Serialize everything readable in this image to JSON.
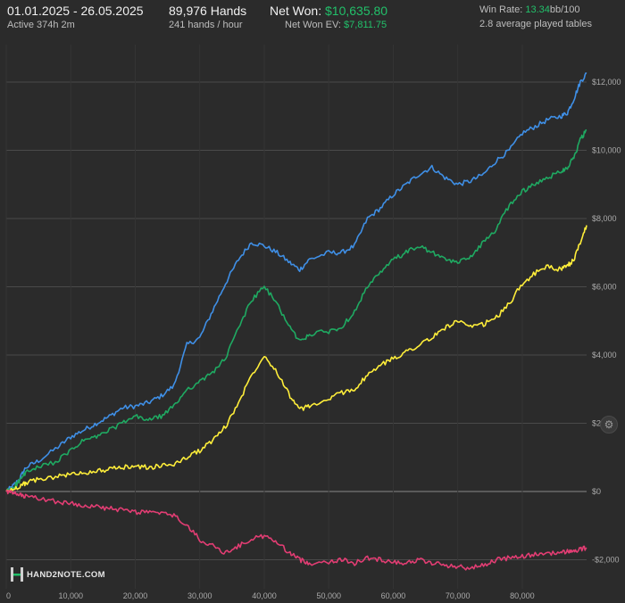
{
  "header": {
    "date_range": "01.01.2025 - 26.05.2025",
    "active": "Active 374h 2m",
    "hands": "89,976 Hands",
    "hands_per_hour": "241 hands / hour",
    "net_won_label": "Net Won:",
    "net_won_value": "$10,635.80",
    "net_won_ev_label": "Net Won  EV:",
    "net_won_ev_value": "$7,811.75",
    "win_rate_label": "Win Rate:",
    "win_rate_value": "13.34",
    "win_rate_unit": "bb/100",
    "tables": "2.8 average played tables"
  },
  "logo_text": "HAND2NOTE.COM",
  "settings_icon": "gear-icon",
  "chart_data": {
    "type": "line",
    "xlim": [
      0,
      89976
    ],
    "ylim": [
      -2500,
      12500
    ],
    "x_ticks": [
      0,
      10000,
      20000,
      30000,
      40000,
      50000,
      60000,
      70000,
      80000
    ],
    "x_tick_labels": [
      "0",
      "10,000",
      "20,000",
      "30,000",
      "40,000",
      "50,000",
      "60,000",
      "70,000",
      "80,000"
    ],
    "y_ticks": [
      -2000,
      0,
      2000,
      4000,
      6000,
      8000,
      10000,
      12000
    ],
    "y_tick_labels": [
      "-$2,000",
      "$0",
      "$2,000",
      "$4,000",
      "$6,000",
      "$8,000",
      "$10,000",
      "$12,000"
    ],
    "grid": true,
    "x": [
      0,
      1000,
      2000,
      3000,
      5000,
      8000,
      10000,
      12000,
      14000,
      16000,
      18000,
      20000,
      22000,
      24000,
      26000,
      28000,
      30000,
      32000,
      34000,
      36000,
      38000,
      40000,
      42000,
      44000,
      45500,
      47000,
      50000,
      52000,
      54000,
      56000,
      58000,
      60000,
      62000,
      64000,
      66000,
      68000,
      70000,
      72000,
      74000,
      76000,
      78000,
      80000,
      82000,
      84000,
      86000,
      87000,
      88000,
      89000,
      89976
    ],
    "series": [
      {
        "color": "#3f8fe6",
        "values": [
          0,
          150,
          350,
          700,
          900,
          1300,
          1600,
          1800,
          2000,
          2200,
          2450,
          2500,
          2600,
          2800,
          3100,
          4300,
          4500,
          5300,
          6100,
          6800,
          7300,
          7200,
          7000,
          6700,
          6500,
          6800,
          7000,
          7000,
          7200,
          8000,
          8300,
          8700,
          9000,
          9300,
          9500,
          9200,
          9000,
          9100,
          9300,
          9700,
          10000,
          10500,
          10700,
          10900,
          11000,
          11100,
          11500,
          12000,
          12250
        ]
      },
      {
        "color": "#1faa62",
        "values": [
          0,
          100,
          300,
          550,
          700,
          900,
          1200,
          1500,
          1600,
          1800,
          2000,
          2200,
          2100,
          2200,
          2500,
          3000,
          3200,
          3500,
          3900,
          4800,
          5600,
          6000,
          5500,
          4800,
          4400,
          4600,
          4700,
          4800,
          5300,
          6000,
          6400,
          6800,
          7000,
          7200,
          7000,
          6800,
          6700,
          6900,
          7300,
          7700,
          8400,
          8800,
          9000,
          9200,
          9400,
          9500,
          9800,
          10300,
          10600
        ]
      },
      {
        "color": "#ffee3a",
        "values": [
          0,
          50,
          150,
          250,
          350,
          450,
          500,
          550,
          600,
          650,
          700,
          750,
          700,
          750,
          800,
          1000,
          1200,
          1500,
          1900,
          2600,
          3400,
          4000,
          3500,
          2800,
          2400,
          2500,
          2700,
          2900,
          3000,
          3400,
          3700,
          3900,
          4100,
          4300,
          4500,
          4800,
          5000,
          4800,
          4900,
          5100,
          5500,
          6100,
          6400,
          6600,
          6500,
          6600,
          6800,
          7300,
          7800
        ]
      },
      {
        "color": "#e23d73",
        "values": [
          0,
          -50,
          -100,
          -150,
          -200,
          -300,
          -350,
          -400,
          -450,
          -500,
          -550,
          -600,
          -600,
          -650,
          -700,
          -1000,
          -1400,
          -1600,
          -1800,
          -1600,
          -1400,
          -1300,
          -1500,
          -1800,
          -2000,
          -2100,
          -2050,
          -2000,
          -2100,
          -1950,
          -2000,
          -2050,
          -2100,
          -2000,
          -2100,
          -2150,
          -2200,
          -2250,
          -2150,
          -2000,
          -1950,
          -1900,
          -1850,
          -1800,
          -1800,
          -1750,
          -1750,
          -1700,
          -1650
        ]
      }
    ]
  }
}
